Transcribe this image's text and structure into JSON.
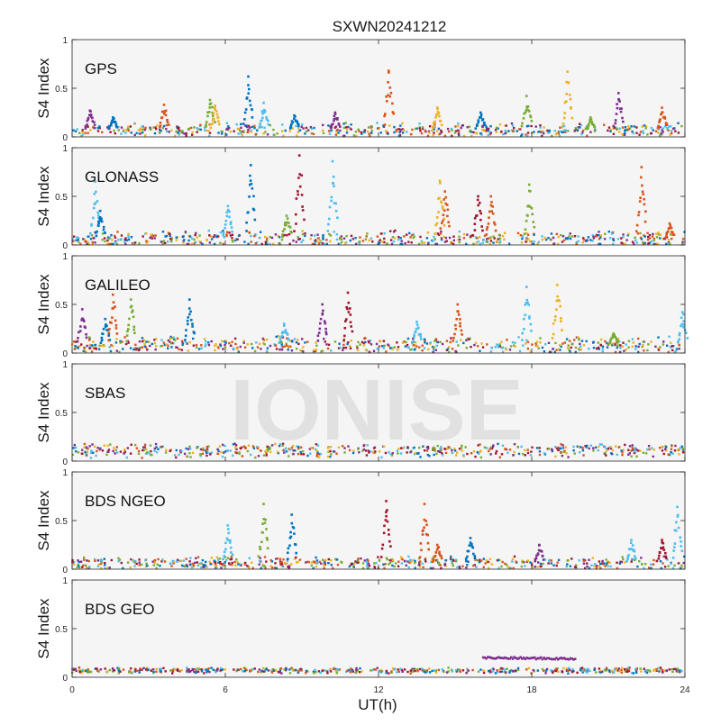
{
  "figure": {
    "title": "SXWN20241212",
    "xlabel": "UT(h)",
    "watermark": "IONISE"
  },
  "chart_data": {
    "type": "scatter",
    "title": "SXWN20241212",
    "xlabel": "UT(h)",
    "xlim": [
      0,
      24
    ],
    "xticks": [
      0,
      6,
      12,
      18,
      24
    ],
    "grid": false,
    "legend": "none",
    "series_colors": [
      "#0072BD",
      "#D95319",
      "#EDB120",
      "#7E2F8E",
      "#77AC30",
      "#4DBEEE",
      "#A2142F"
    ],
    "panels": [
      {
        "label": "GPS",
        "ylabel": "S4 Index",
        "ylim": [
          0,
          1
        ],
        "yticks": [
          "0",
          "0.5",
          "1"
        ],
        "baseline": 0.07,
        "noise": 0.05,
        "spikes": [
          {
            "x": 0.7,
            "peak": 0.27,
            "color": "#7E2F8E"
          },
          {
            "x": 1.6,
            "peak": 0.2,
            "color": "#0072BD"
          },
          {
            "x": 3.6,
            "peak": 0.33,
            "color": "#D95319"
          },
          {
            "x": 5.4,
            "peak": 0.38,
            "color": "#77AC30"
          },
          {
            "x": 5.6,
            "peak": 0.32,
            "color": "#EDB120"
          },
          {
            "x": 6.9,
            "peak": 0.62,
            "color": "#0072BD"
          },
          {
            "x": 7.5,
            "peak": 0.35,
            "color": "#4DBEEE"
          },
          {
            "x": 8.7,
            "peak": 0.22,
            "color": "#0072BD"
          },
          {
            "x": 10.3,
            "peak": 0.25,
            "color": "#7E2F8E"
          },
          {
            "x": 12.4,
            "peak": 0.68,
            "color": "#D95319"
          },
          {
            "x": 14.3,
            "peak": 0.3,
            "color": "#EDB120"
          },
          {
            "x": 16.0,
            "peak": 0.25,
            "color": "#0072BD"
          },
          {
            "x": 17.8,
            "peak": 0.42,
            "color": "#77AC30"
          },
          {
            "x": 19.4,
            "peak": 0.67,
            "color": "#EDB120"
          },
          {
            "x": 20.3,
            "peak": 0.2,
            "color": "#77AC30"
          },
          {
            "x": 21.4,
            "peak": 0.45,
            "color": "#7E2F8E"
          },
          {
            "x": 23.1,
            "peak": 0.3,
            "color": "#D95319"
          }
        ],
        "bands": []
      },
      {
        "label": "GLONASS",
        "ylabel": "S4 Index",
        "ylim": [
          0,
          1
        ],
        "yticks": [
          "0",
          "0.5",
          "1"
        ],
        "baseline": 0.06,
        "noise": 0.06,
        "spikes": [
          {
            "x": 0.9,
            "peak": 0.65,
            "color": "#4DBEEE"
          },
          {
            "x": 1.1,
            "peak": 0.35,
            "color": "#0072BD"
          },
          {
            "x": 6.1,
            "peak": 0.4,
            "color": "#4DBEEE"
          },
          {
            "x": 7.0,
            "peak": 0.82,
            "color": "#0072BD"
          },
          {
            "x": 8.4,
            "peak": 0.3,
            "color": "#77AC30"
          },
          {
            "x": 8.9,
            "peak": 0.92,
            "color": "#A2142F"
          },
          {
            "x": 10.2,
            "peak": 0.86,
            "color": "#4DBEEE"
          },
          {
            "x": 14.4,
            "peak": 0.66,
            "color": "#EDB120"
          },
          {
            "x": 14.6,
            "peak": 0.55,
            "color": "#D95319"
          },
          {
            "x": 15.9,
            "peak": 0.5,
            "color": "#A2142F"
          },
          {
            "x": 16.4,
            "peak": 0.5,
            "color": "#D95319"
          },
          {
            "x": 17.9,
            "peak": 0.62,
            "color": "#77AC30"
          },
          {
            "x": 22.3,
            "peak": 0.8,
            "color": "#D95319"
          },
          {
            "x": 23.4,
            "peak": 0.22,
            "color": "#D95319"
          }
        ],
        "bands": []
      },
      {
        "label": "GALILEO",
        "ylabel": "S4 Index",
        "ylim": [
          0,
          1
        ],
        "yticks": [
          "0",
          "0.5",
          "1"
        ],
        "baseline": 0.08,
        "noise": 0.06,
        "spikes": [
          {
            "x": 0.4,
            "peak": 0.45,
            "color": "#7E2F8E"
          },
          {
            "x": 1.3,
            "peak": 0.35,
            "color": "#0072BD"
          },
          {
            "x": 1.6,
            "peak": 0.6,
            "color": "#D95319"
          },
          {
            "x": 2.3,
            "peak": 0.55,
            "color": "#77AC30"
          },
          {
            "x": 4.6,
            "peak": 0.55,
            "color": "#0072BD"
          },
          {
            "x": 8.3,
            "peak": 0.3,
            "color": "#4DBEEE"
          },
          {
            "x": 9.8,
            "peak": 0.5,
            "color": "#7E2F8E"
          },
          {
            "x": 10.8,
            "peak": 0.62,
            "color": "#A2142F"
          },
          {
            "x": 13.5,
            "peak": 0.32,
            "color": "#4DBEEE"
          },
          {
            "x": 15.1,
            "peak": 0.5,
            "color": "#D95319"
          },
          {
            "x": 17.8,
            "peak": 0.68,
            "color": "#4DBEEE"
          },
          {
            "x": 19.0,
            "peak": 0.7,
            "color": "#EDB120"
          },
          {
            "x": 21.2,
            "peak": 0.2,
            "color": "#77AC30"
          },
          {
            "x": 23.9,
            "peak": 0.42,
            "color": "#4DBEEE"
          }
        ],
        "bands": []
      },
      {
        "label": "SBAS",
        "ylabel": "S4 Index",
        "ylim": [
          0,
          1
        ],
        "yticks": [
          "0",
          "0.5",
          "1"
        ],
        "baseline": 0.11,
        "noise": 0.05,
        "spikes": [],
        "bands": []
      },
      {
        "label": "BDS NGEO",
        "ylabel": "S4 Index",
        "ylim": [
          0,
          1
        ],
        "yticks": [
          "0",
          "0.5",
          "1"
        ],
        "baseline": 0.06,
        "noise": 0.05,
        "spikes": [
          {
            "x": 6.1,
            "peak": 0.45,
            "color": "#4DBEEE"
          },
          {
            "x": 7.5,
            "peak": 0.67,
            "color": "#77AC30"
          },
          {
            "x": 8.6,
            "peak": 0.56,
            "color": "#0072BD"
          },
          {
            "x": 12.3,
            "peak": 0.7,
            "color": "#A2142F"
          },
          {
            "x": 13.8,
            "peak": 0.67,
            "color": "#D95319"
          },
          {
            "x": 14.3,
            "peak": 0.25,
            "color": "#D95319"
          },
          {
            "x": 15.6,
            "peak": 0.32,
            "color": "#0072BD"
          },
          {
            "x": 18.3,
            "peak": 0.25,
            "color": "#7E2F8E"
          },
          {
            "x": 21.9,
            "peak": 0.3,
            "color": "#4DBEEE"
          },
          {
            "x": 23.1,
            "peak": 0.3,
            "color": "#A2142F"
          },
          {
            "x": 23.7,
            "peak": 0.64,
            "color": "#4DBEEE"
          }
        ],
        "bands": []
      },
      {
        "label": "BDS GEO",
        "ylabel": "S4 Index",
        "ylim": [
          0,
          1
        ],
        "yticks": [
          "0",
          "0.5",
          "1"
        ],
        "baseline": 0.07,
        "noise": 0.02,
        "spikes": [],
        "bands": [
          {
            "x0": 16.1,
            "x1": 19.7,
            "y0": 0.2,
            "y1": 0.19,
            "color": "#7E2F8E"
          }
        ]
      }
    ]
  }
}
